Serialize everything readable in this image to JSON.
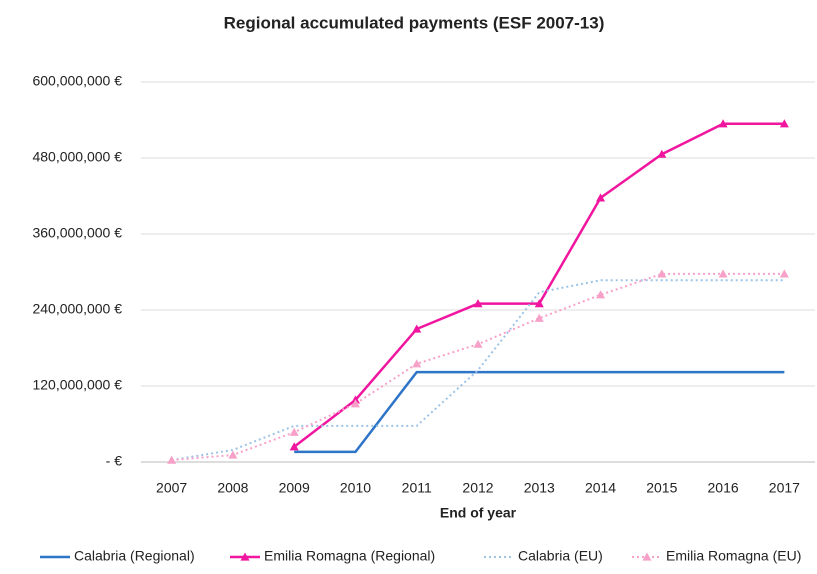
{
  "chart_data": {
    "type": "line",
    "title": "Regional accumulated payments (ESF 2007-13)",
    "x_label": "End of year",
    "categories": [
      "2007",
      "2008",
      "2009",
      "2010",
      "2011",
      "2012",
      "2013",
      "2014",
      "2015",
      "2016",
      "2017"
    ],
    "series": [
      {
        "name": "Calabria (Regional)",
        "color": "#2e75c7",
        "style": "solid",
        "marker": "none",
        "values": [
          null,
          null,
          16000000,
          16000000,
          142000000,
          142000000,
          142000000,
          142000000,
          142000000,
          142000000,
          142000000
        ]
      },
      {
        "name": "Emilia Romagna (Regional)",
        "color": "#f0169f",
        "style": "solid",
        "marker": "triangle",
        "values": [
          null,
          null,
          24000000,
          98000000,
          210000000,
          250000000,
          250000000,
          417000000,
          486000000,
          534000000,
          534000000
        ]
      },
      {
        "name": "Calabria (EU)",
        "color": "#9dc3e6",
        "style": "dotted",
        "marker": "none",
        "values": [
          3000000,
          19000000,
          57000000,
          57000000,
          57000000,
          145000000,
          268000000,
          287000000,
          287000000,
          287000000,
          287000000
        ]
      },
      {
        "name": "Emilia Romagna (EU)",
        "color": "#f7a0c8",
        "style": "dotted",
        "marker": "triangle",
        "values": [
          3000000,
          11000000,
          47000000,
          92000000,
          155000000,
          186000000,
          227000000,
          264000000,
          297000000,
          297000000,
          297000000
        ]
      }
    ],
    "ylim": [
      0,
      600000000
    ],
    "yticks": [
      {
        "value": 0,
        "label": "- €"
      },
      {
        "value": 120000000,
        "label": "120,000,000 €"
      },
      {
        "value": 240000000,
        "label": "240,000,000 €"
      },
      {
        "value": 360000000,
        "label": "360,000,000 €"
      },
      {
        "value": 480000000,
        "label": "480,000,000 €"
      },
      {
        "value": 600000000,
        "label": "600,000,000 €"
      }
    ],
    "grid": true,
    "legend": "bottom"
  }
}
